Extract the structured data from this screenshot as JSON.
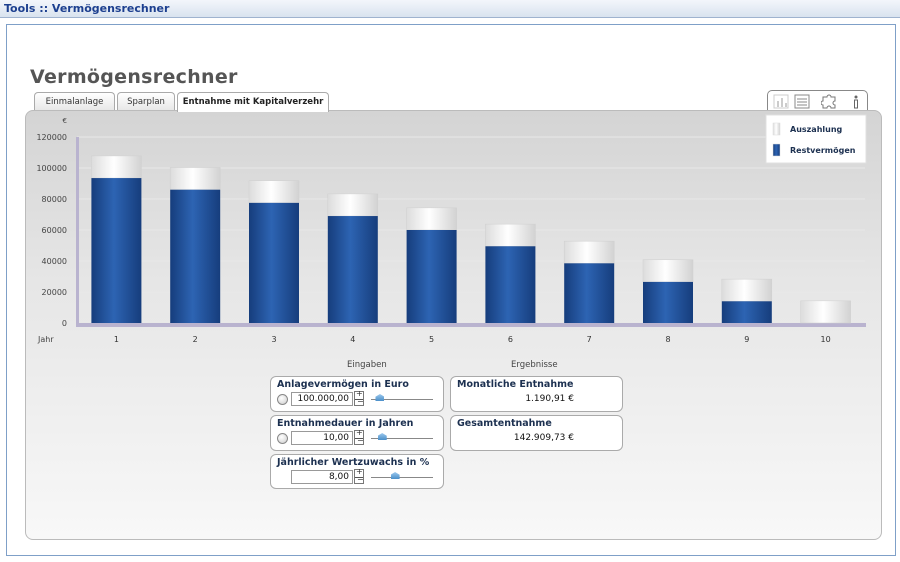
{
  "window": {
    "title": "Tools :: Vermögensrechner"
  },
  "page": {
    "heading": "Vermögensrechner"
  },
  "tabs": [
    {
      "label": "Einmalanlage",
      "active": false
    },
    {
      "label": "Sparplan",
      "active": false
    },
    {
      "label": "Entnahme mit Kapitalverzehr",
      "active": true
    }
  ],
  "toolbar_icons": [
    "bar-chart-icon",
    "table-icon",
    "puzzle-icon",
    "info-icon"
  ],
  "chart_data": {
    "type": "bar",
    "stacked": true,
    "y_unit": "€",
    "x_axis_label": "Jahr",
    "categories": [
      "1",
      "2",
      "3",
      "4",
      "5",
      "6",
      "7",
      "8",
      "9",
      "10"
    ],
    "series": [
      {
        "name": "Restvermögen",
        "color": "#1f4f99",
        "values": [
          93500,
          86000,
          77500,
          69000,
          60000,
          49500,
          38500,
          26500,
          14000,
          0
        ]
      },
      {
        "name": "Auszahlung",
        "color": "#f2f2f2",
        "values": [
          14300,
          14300,
          14300,
          14300,
          14300,
          14300,
          14300,
          14300,
          14300,
          14300
        ]
      }
    ],
    "ylim": [
      0,
      120000
    ],
    "y_ticks": [
      "0",
      "20000",
      "40000",
      "60000",
      "80000",
      "100000",
      "120000"
    ],
    "legend": [
      "Auszahlung",
      "Restvermögen"
    ],
    "legend_position": "top-right",
    "grid": true
  },
  "inputs": {
    "section_label": "Eingaben",
    "anlagevermoegen": {
      "label": "Anlagevermögen in Euro",
      "value": "100.000,00",
      "slider_fraction": 0.08
    },
    "entnahmedauer": {
      "label": "Entnahmedauer in Jahren",
      "value": "10,00",
      "slider_fraction": 0.12
    },
    "wertzuwachs": {
      "label": "Jährlicher Wertzuwachs in %",
      "value": "8,00",
      "slider_fraction": 0.35
    }
  },
  "results": {
    "section_label": "Ergebnisse",
    "monatliche_entnahme": {
      "label": "Monatliche Entnahme",
      "value": "1.190,91 €"
    },
    "gesamtentnahme": {
      "label": "Gesamtentnahme",
      "value": "142.909,73 €"
    }
  }
}
